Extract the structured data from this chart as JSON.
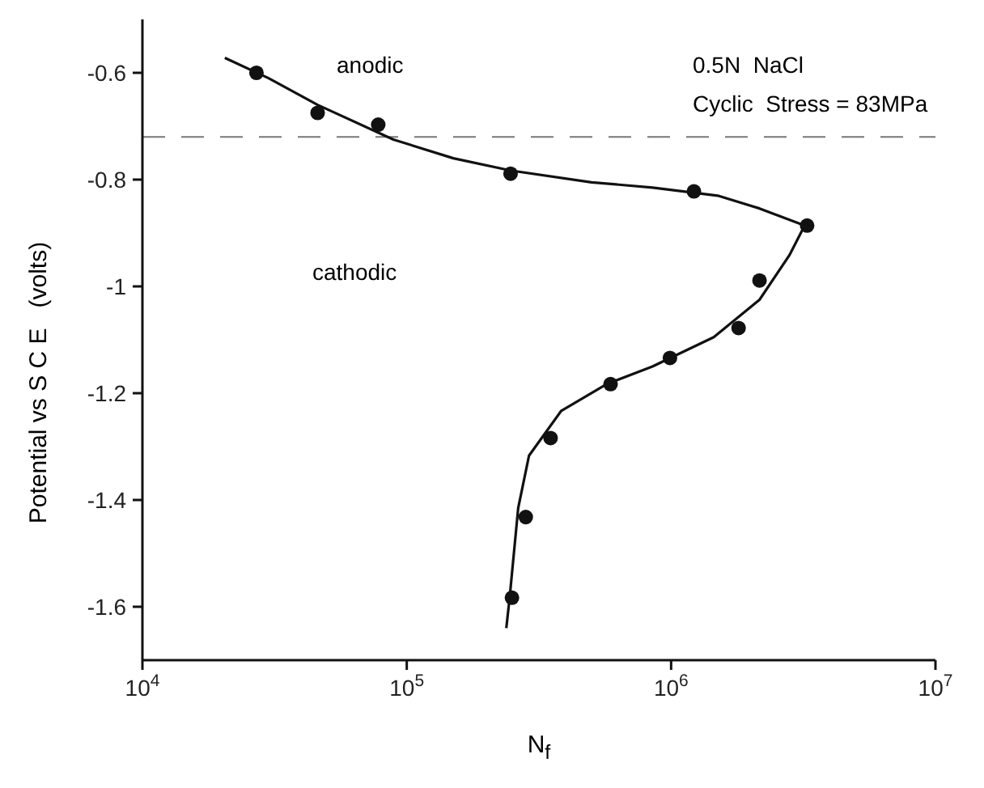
{
  "chart_data": {
    "type": "scatter",
    "xlabel": "N$_{f}$",
    "ylabel": "Potential vs S C E   (volts)",
    "log": "x",
    "xlim": [
      10000,
      10000000
    ],
    "xticks": [
      {
        "value": 10000,
        "label": "10$^{4}$"
      },
      {
        "value": 100000,
        "label": "10$^{5}$"
      },
      {
        "value": 1000000,
        "label": "10$^{6}$"
      },
      {
        "value": 10000000,
        "label": "10$^{7}$"
      }
    ],
    "ylim": [
      -1.7,
      -0.5
    ],
    "yticks": [
      -0.6,
      -0.8,
      -1.0,
      -1.2,
      -1.4,
      -1.6
    ],
    "series": [
      {
        "color": "#111111",
        "marker": "circle",
        "x": [
          27000,
          46000,
          78000,
          247000,
          1220000,
          3270000,
          2160000,
          1800000,
          990000,
          590000,
          350000,
          282000,
          250000
        ],
        "values": [
          -0.6,
          -0.675,
          -0.697,
          -0.789,
          -0.822,
          -0.886,
          -0.989,
          -1.078,
          -1.134,
          -1.183,
          -1.284,
          -1.432,
          -1.583
        ]
      },
      {
        "type": "line",
        "color": "#111111",
        "marker": "none",
        "line_style": "solid",
        "x": [
          20500,
          30000,
          46000,
          89000,
          150000,
          247000,
          500000,
          850000,
          1500000,
          2160000,
          3200000,
          2800000,
          2160000,
          1450000,
          850000,
          570000,
          384000,
          290000,
          264000,
          245000,
          238000
        ],
        "values": [
          -0.572,
          -0.61,
          -0.66,
          -0.725,
          -0.76,
          -0.783,
          -0.805,
          -0.815,
          -0.83,
          -0.854,
          -0.886,
          -0.942,
          -1.025,
          -1.095,
          -1.15,
          -1.183,
          -1.233,
          -1.317,
          -1.415,
          -1.583,
          -1.64
        ]
      }
    ],
    "ref_lines": [
      {
        "axis": "y",
        "value": -0.72,
        "color": "#777777",
        "line_style": "dashed"
      }
    ],
    "annotations": [
      "anodic",
      "cathodic",
      "0.5N  NaCl",
      "Cyclic  Stress = 83MPa"
    ]
  }
}
